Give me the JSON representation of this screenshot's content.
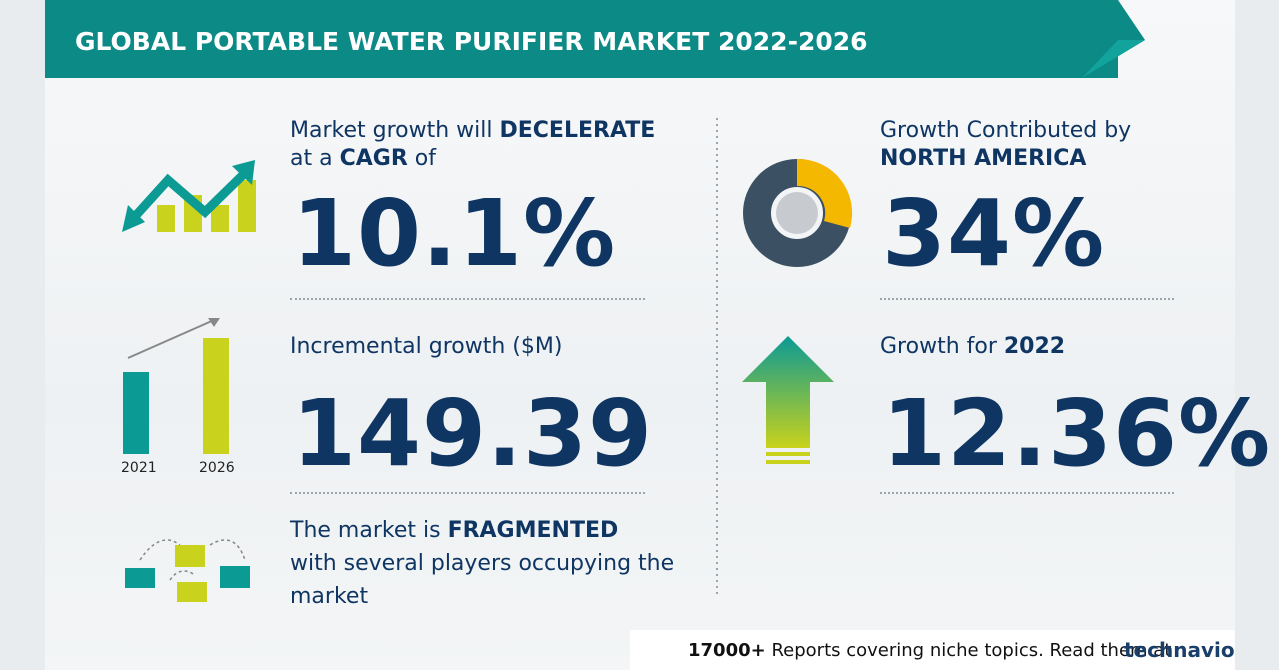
{
  "header": {
    "title": "GLOBAL PORTABLE WATER PURIFIER MARKET 2022-2026"
  },
  "cagr": {
    "line1_prefix": "Market growth will",
    "line1_emphasis": "DECELERATE",
    "line2_prefix": "at a",
    "line2_emphasis": "CAGR",
    "line2_suffix": "of",
    "value": "10.1%"
  },
  "incremental": {
    "label": "Incremental growth ($M)",
    "value": "149.39",
    "years": [
      "2021",
      "2026"
    ]
  },
  "fragmented": {
    "line1_prefix": "The market is",
    "line1_emphasis": "FRAGMENTED",
    "line2": "with several players occupying the",
    "line3": "market"
  },
  "region": {
    "label": "Growth Contributed by",
    "name": "NORTH AMERICA",
    "value": "34%"
  },
  "yoy": {
    "label": "Growth for",
    "year": "2022",
    "value": "12.36%"
  },
  "footer": {
    "count": "17000+",
    "note": "Reports covering niche topics. Read them at",
    "brand": "technavio"
  }
}
